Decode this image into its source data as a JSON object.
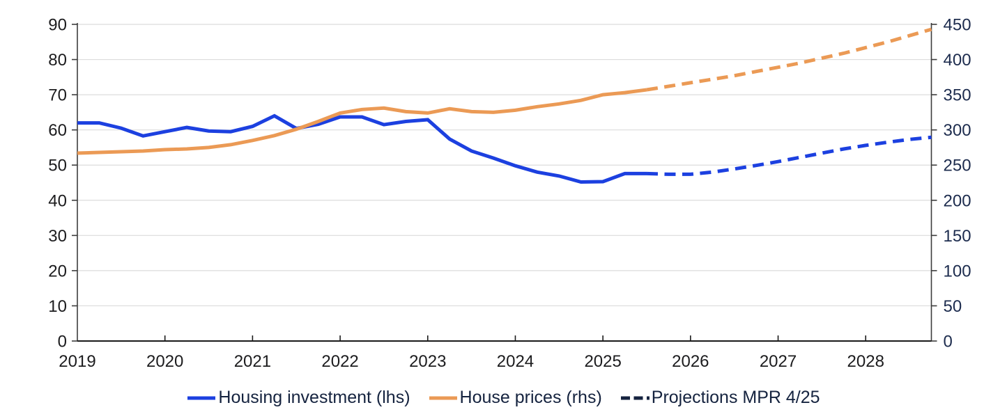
{
  "colors": {
    "housing_investment_blue": "#1c40e0",
    "house_prices_orange": "#eb9a55",
    "projection_navy": "#15233f",
    "gridline": "#dcdcdc",
    "axis_line": "#3c3c3c",
    "baseline": "#1a1a1a",
    "left_tick_label": "#1c1c1e",
    "bottom_tick_label": "#1c1c1e",
    "right_tick_label": "#1d2c4e",
    "legend_text": "#15233f"
  },
  "chart_data": {
    "type": "line",
    "title": "",
    "frequency": "quarterly",
    "x_axis": {
      "tick_labels": [
        "2019",
        "2020",
        "2021",
        "2022",
        "2023",
        "2024",
        "2025",
        "2026",
        "2027",
        "2028"
      ],
      "range_start": 2019.0,
      "range_end": 2028.75,
      "grid": false
    },
    "left_axis": {
      "min": 0,
      "max": 90,
      "ticks": [
        0,
        10,
        20,
        30,
        40,
        50,
        60,
        70,
        80,
        90
      ],
      "grid": true
    },
    "right_axis": {
      "min": 0,
      "max": 450,
      "ticks": [
        0,
        50,
        100,
        150,
        200,
        250,
        300,
        350,
        400,
        450
      ]
    },
    "series": [
      {
        "id": "housing-investment",
        "name": "Housing investment (lhs)",
        "axis": "left",
        "line": "solid",
        "color": "#1c40e0",
        "start": 2019.0,
        "step": 0.25,
        "values": [
          62.0,
          62.0,
          60.5,
          58.3,
          59.5,
          60.7,
          59.7,
          59.5,
          61.0,
          64.0,
          60.4,
          61.6,
          63.7,
          63.7,
          61.5,
          62.4,
          62.9,
          57.4,
          54.0,
          52.0,
          49.8,
          48.0,
          46.9,
          45.2,
          45.3,
          47.6,
          47.6
        ]
      },
      {
        "id": "housing-investment-projection",
        "name": "Housing investment projection MPR 4/25 (lhs)",
        "axis": "left",
        "line": "dashed",
        "color": "#1c40e0",
        "start": 2025.5,
        "step": 0.25,
        "values": [
          47.6,
          47.4,
          47.4,
          48.0,
          48.9,
          49.9,
          51.0,
          52.2,
          53.4,
          54.6,
          55.6,
          56.5,
          57.3,
          57.9
        ]
      },
      {
        "id": "house-prices",
        "name": "House prices (rhs)",
        "axis": "right",
        "line": "solid",
        "color": "#eb9a55",
        "start": 2019.0,
        "step": 0.25,
        "values": [
          267,
          268,
          269,
          270,
          272,
          273,
          275,
          279,
          285,
          292,
          301,
          312,
          324,
          329,
          331,
          326,
          324,
          330,
          326,
          325,
          328,
          333,
          337,
          342,
          350,
          353,
          357
        ]
      },
      {
        "id": "house-prices-projection",
        "name": "House prices projection MPR 4/25 (rhs)",
        "axis": "right",
        "line": "dashed",
        "color": "#eb9a55",
        "start": 2025.5,
        "step": 0.25,
        "values": [
          357,
          362,
          367,
          372,
          377,
          383,
          389,
          395,
          402,
          409,
          417,
          425,
          434,
          443
        ]
      }
    ],
    "legend": [
      {
        "label": "Housing investment (lhs)",
        "color": "#1c40e0",
        "style": "solid"
      },
      {
        "label": "House prices (rhs)",
        "color": "#eb9a55",
        "style": "solid"
      },
      {
        "label": "Projections MPR 4/25",
        "color": "#15233f",
        "style": "dashed"
      }
    ],
    "legend_position": "bottom-center"
  }
}
